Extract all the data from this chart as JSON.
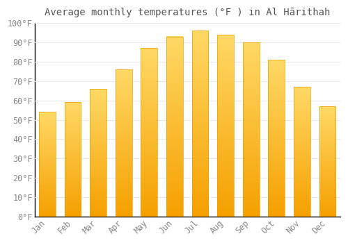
{
  "title": "Average monthly temperatures (°F ) in Al Hārithah",
  "months": [
    "Jan",
    "Feb",
    "Mar",
    "Apr",
    "May",
    "Jun",
    "Jul",
    "Aug",
    "Sep",
    "Oct",
    "Nov",
    "Dec"
  ],
  "values": [
    54,
    59,
    66,
    76,
    87,
    93,
    96,
    94,
    90,
    81,
    67,
    57
  ],
  "bar_color_bottom": "#F5A000",
  "bar_color_top": "#FFD966",
  "background_color": "#FFFFFF",
  "plot_bg_color": "#FFFFFF",
  "grid_color": "#E8E8E8",
  "text_color": "#888888",
  "title_color": "#555555",
  "spine_color": "#000000",
  "ylim": [
    0,
    100
  ],
  "yticks": [
    0,
    10,
    20,
    30,
    40,
    50,
    60,
    70,
    80,
    90,
    100
  ],
  "ytick_labels": [
    "0°F",
    "10°F",
    "20°F",
    "30°F",
    "40°F",
    "50°F",
    "60°F",
    "70°F",
    "80°F",
    "90°F",
    "100°F"
  ],
  "title_fontsize": 10,
  "tick_fontsize": 8.5,
  "bar_width": 0.65
}
